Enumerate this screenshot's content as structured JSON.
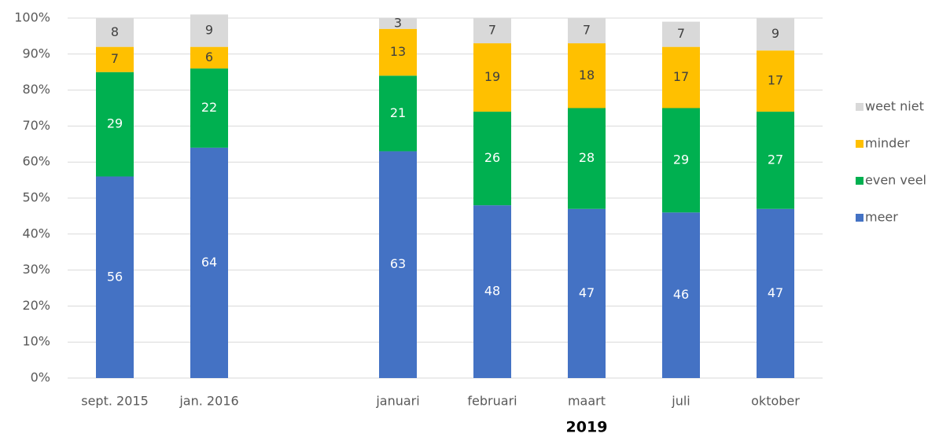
{
  "chart_data": {
    "type": "stacked_bar",
    "categories": [
      "sept. 2015",
      "jan. 2016",
      null,
      "januari",
      "februari",
      "maart",
      "juli",
      "oktober"
    ],
    "series": [
      {
        "name": "meer",
        "color": "#4472c4",
        "values": [
          56,
          64,
          null,
          63,
          48,
          47,
          46,
          47
        ]
      },
      {
        "name": "even veel",
        "color": "#00b050",
        "values": [
          29,
          22,
          null,
          21,
          26,
          28,
          29,
          27
        ]
      },
      {
        "name": "minder",
        "color": "#ffc000",
        "values": [
          7,
          6,
          null,
          13,
          19,
          18,
          17,
          17
        ]
      },
      {
        "name": "weet niet",
        "color": "#d9d9d9",
        "values": [
          8,
          9,
          null,
          3,
          7,
          7,
          7,
          9
        ]
      }
    ],
    "group_label": "2019",
    "ylim": [
      0,
      100
    ],
    "yticks": [
      {
        "value": 0,
        "label": "0%"
      },
      {
        "value": 10,
        "label": "10%"
      },
      {
        "value": 20,
        "label": "20%"
      },
      {
        "value": 30,
        "label": "30%"
      },
      {
        "value": 40,
        "label": "40%"
      },
      {
        "value": 50,
        "label": "50%"
      },
      {
        "value": 60,
        "label": "60%"
      },
      {
        "value": 70,
        "label": "70%"
      },
      {
        "value": 80,
        "label": "80%"
      },
      {
        "value": 90,
        "label": "90%"
      },
      {
        "value": 100,
        "label": "100%"
      }
    ],
    "grid": true,
    "legend": "right"
  }
}
